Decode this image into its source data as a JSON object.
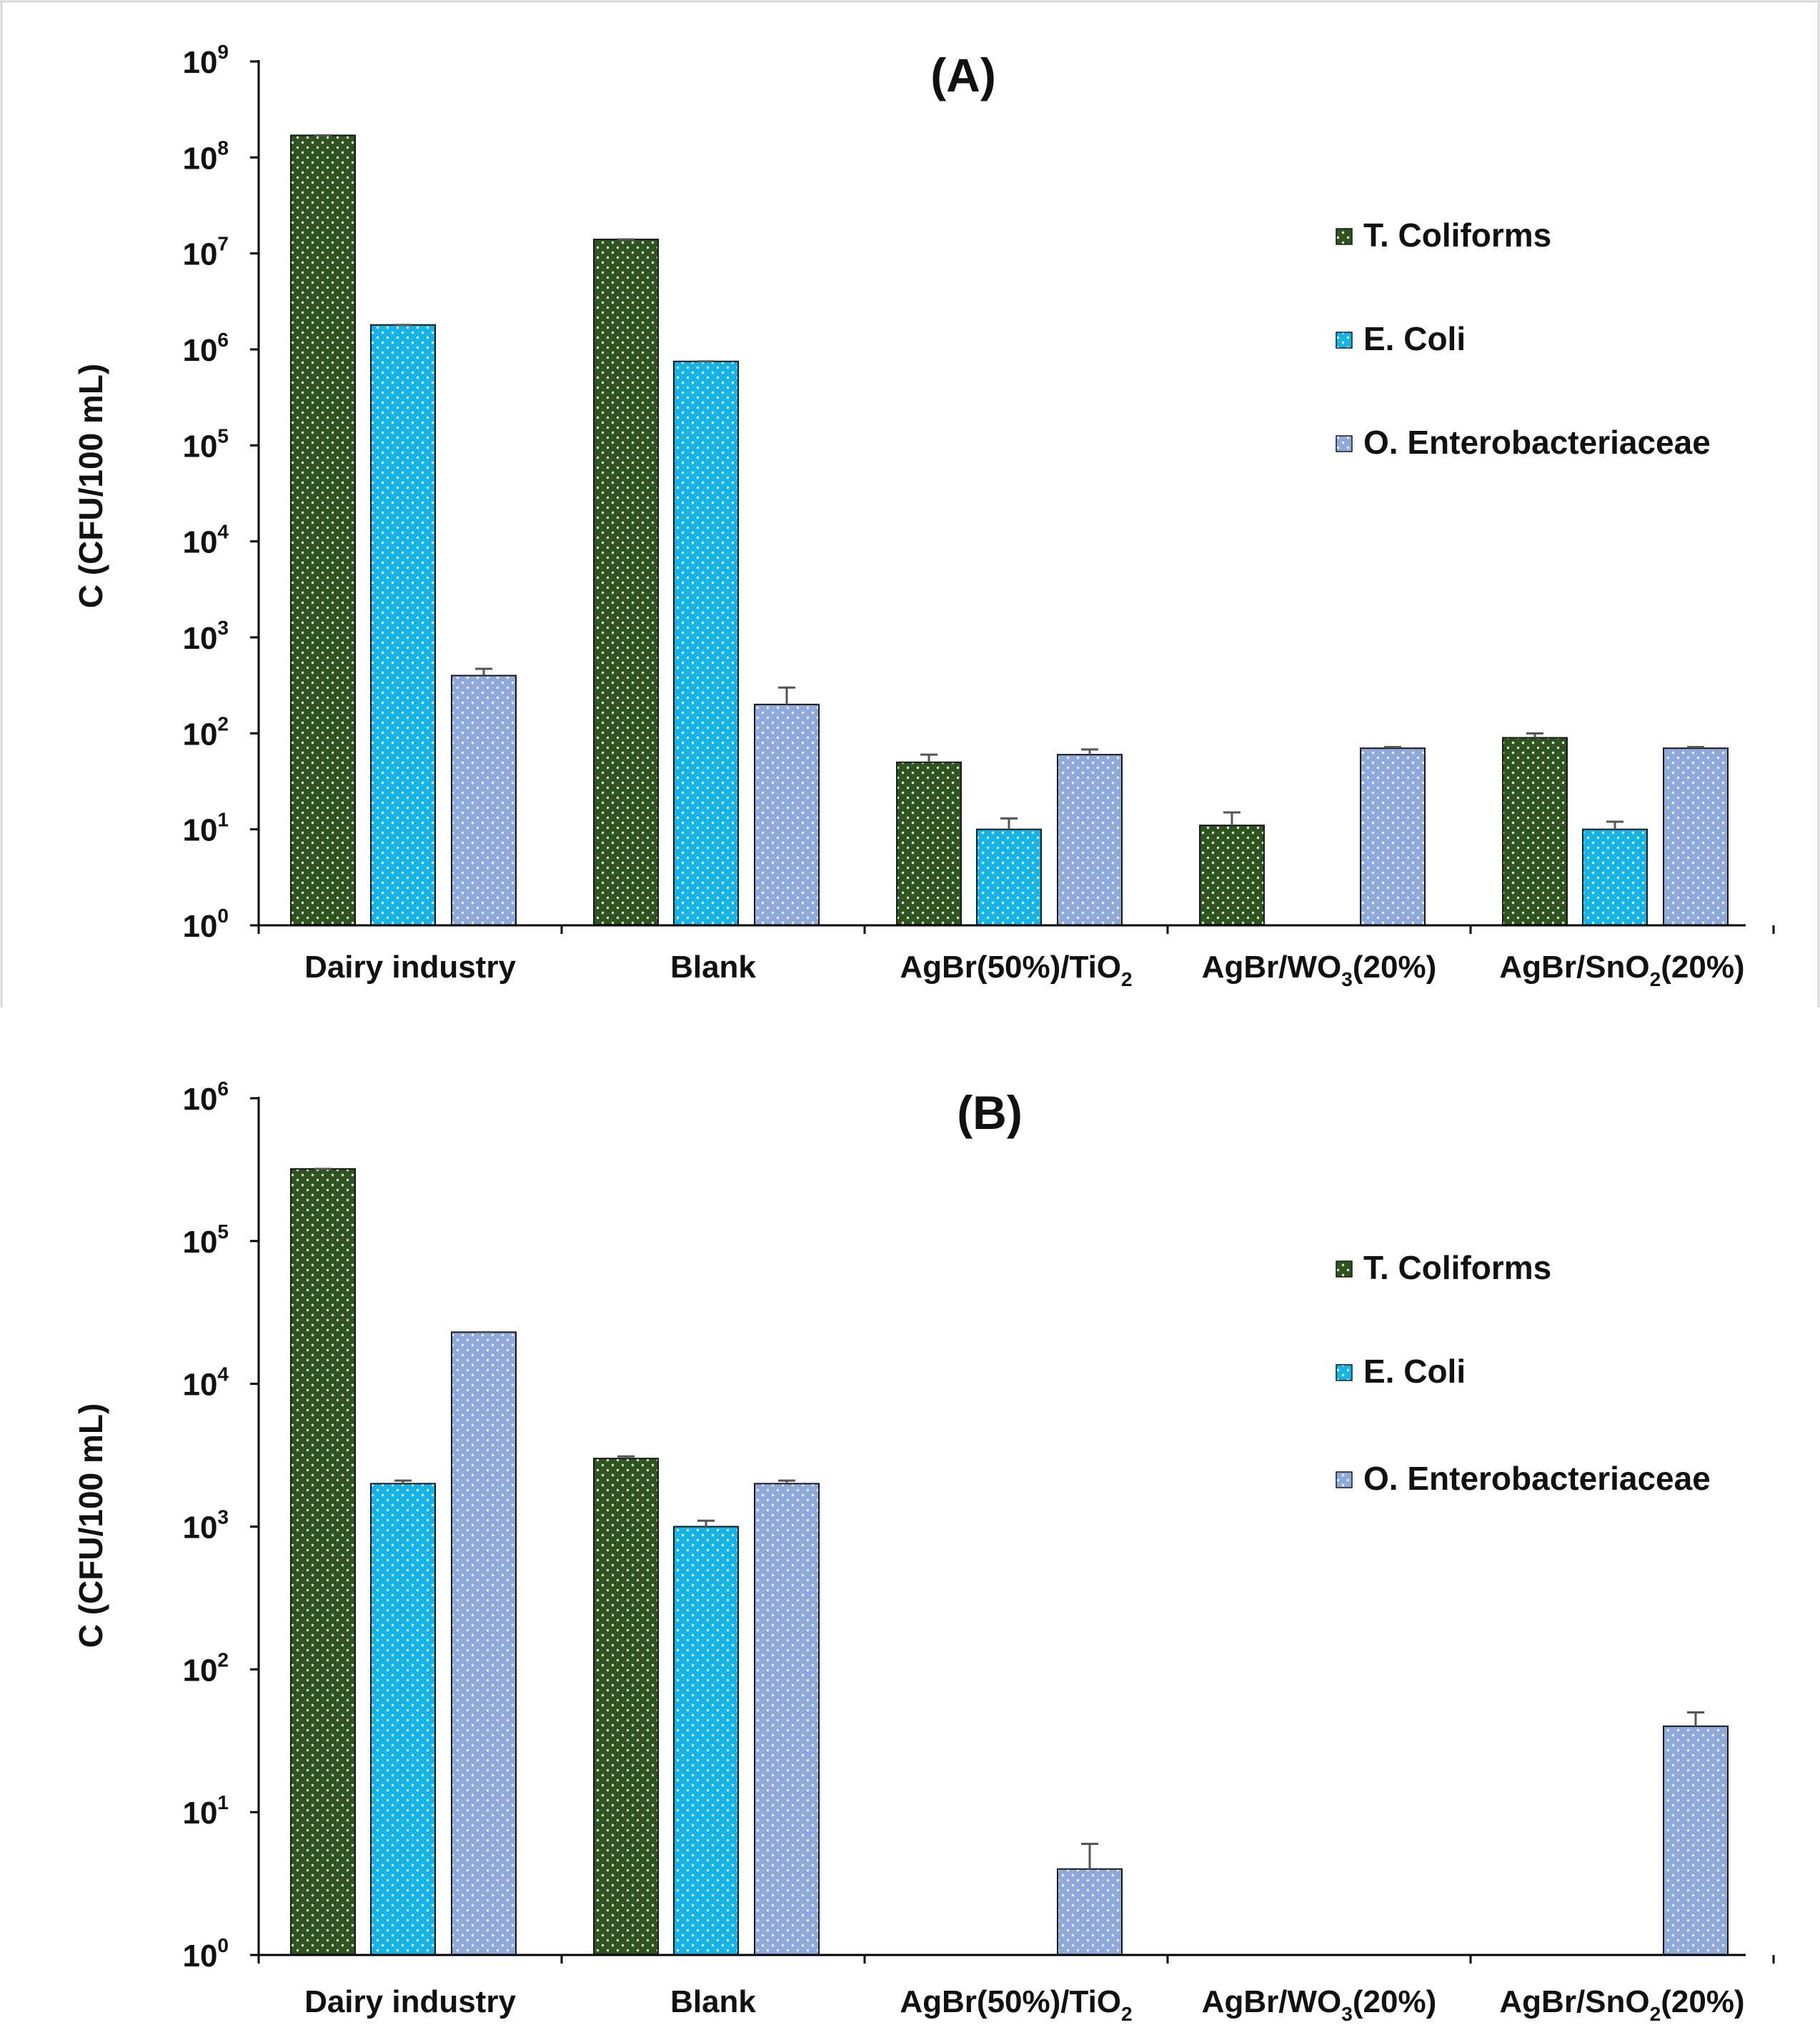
{
  "colors": {
    "T. Coliforms": "#2f5420",
    "E. Coli": "#16b4e6",
    "O. Enterobacteriaceae": "#8fa9da",
    "axis": "#000000",
    "error_bar": "#555555"
  },
  "chart_data": [
    {
      "type": "bar",
      "title": "(A)",
      "ylabel": "C (CFU/100 mL)",
      "xlabel": "",
      "yscale": "log",
      "ylim": [
        1,
        1000000000
      ],
      "ytick_exponents": [
        0,
        1,
        2,
        3,
        4,
        5,
        6,
        7,
        8,
        9
      ],
      "categories": [
        {
          "label": "Dairy industry",
          "base": "Dairy industry",
          "sub": "",
          "tail": ""
        },
        {
          "label": "Blank",
          "base": "Blank",
          "sub": "",
          "tail": ""
        },
        {
          "label": "AgBr(50%)/TiO2",
          "base": "AgBr(50%)/TiO",
          "sub": "2",
          "tail": ""
        },
        {
          "label": "AgBr/WO3(20%)",
          "base": "AgBr/WO",
          "sub": "3",
          "tail": "(20%)"
        },
        {
          "label": "AgBr/SnO2(20%)",
          "base": "AgBr/SnO",
          "sub": "2",
          "tail": "(20%)"
        }
      ],
      "series": [
        {
          "name": "T. Coliforms",
          "values": [
            170000000,
            14000000,
            50,
            11,
            90
          ],
          "errors": [
            0,
            0,
            10,
            4,
            10
          ]
        },
        {
          "name": "E. Coli",
          "values": [
            1800000,
            750000,
            10,
            null,
            10
          ],
          "errors": [
            0,
            0,
            3,
            0,
            2
          ]
        },
        {
          "name": "O. Enterobacteriaceae",
          "values": [
            400,
            200,
            60,
            70,
            70
          ],
          "errors": [
            70,
            100,
            8,
            2,
            2
          ]
        }
      ],
      "legend_position": "right",
      "grid": false
    },
    {
      "type": "bar",
      "title": "(B)",
      "ylabel": "C (CFU/100 mL)",
      "xlabel": "",
      "yscale": "log",
      "ylim": [
        1,
        1000000
      ],
      "ytick_exponents": [
        0,
        1,
        2,
        3,
        4,
        5,
        6
      ],
      "categories": [
        {
          "label": "Dairy industry",
          "base": "Dairy industry",
          "sub": "",
          "tail": ""
        },
        {
          "label": "Blank",
          "base": "Blank",
          "sub": "",
          "tail": ""
        },
        {
          "label": "AgBr(50%)/TiO2",
          "base": "AgBr(50%)/TiO",
          "sub": "2",
          "tail": ""
        },
        {
          "label": "AgBr/WO3(20%)",
          "base": "AgBr/WO",
          "sub": "3",
          "tail": "(20%)"
        },
        {
          "label": "AgBr/SnO2(20%)",
          "base": "AgBr/SnO",
          "sub": "2",
          "tail": "(20%)"
        }
      ],
      "series": [
        {
          "name": "T. Coliforms",
          "values": [
            320000,
            3000,
            null,
            null,
            null
          ],
          "errors": [
            0,
            100,
            0,
            0,
            0
          ]
        },
        {
          "name": "E. Coli",
          "values": [
            2000,
            1000,
            null,
            null,
            null
          ],
          "errors": [
            100,
            100,
            0,
            0,
            0
          ]
        },
        {
          "name": "O. Enterobacteriaceae",
          "values": [
            23000,
            2000,
            4,
            null,
            40
          ],
          "errors": [
            0,
            100,
            2,
            0,
            10
          ]
        }
      ],
      "legend_position": "right",
      "grid": false
    }
  ]
}
